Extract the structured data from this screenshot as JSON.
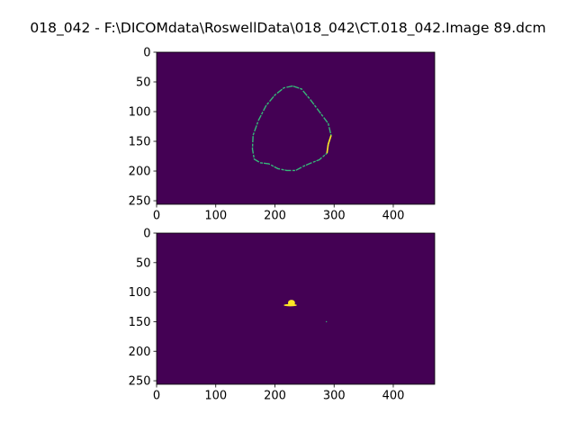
{
  "figure": {
    "title": "018_042 - F:\\DICOMdata\\RoswellData\\018_042\\CT.018_042.Image 89.dcm"
  },
  "colors": {
    "background": "#440154",
    "contour": "#35b779",
    "contour_highlight": "#fde725",
    "blob": "#fde725",
    "axes": "#000000"
  },
  "chart_data": [
    {
      "type": "heatmap",
      "title": "",
      "xlabel": "",
      "ylabel": "",
      "image_size": [
        470,
        256
      ],
      "xlim": [
        0,
        470
      ],
      "ylim": [
        256,
        0
      ],
      "x_ticks": [
        0,
        100,
        200,
        300,
        400
      ],
      "y_ticks": [
        0,
        50,
        100,
        150,
        200,
        250
      ],
      "colormap": "viridis",
      "grid": false,
      "features": [
        {
          "kind": "closed-contour",
          "points": [
            [
              230,
              57
            ],
            [
              215,
              60
            ],
            [
              200,
              72
            ],
            [
              185,
              90
            ],
            [
              172,
              115
            ],
            [
              163,
              140
            ],
            [
              162,
              163
            ],
            [
              165,
              180
            ],
            [
              175,
              186
            ],
            [
              190,
              188
            ],
            [
              205,
              196
            ],
            [
              220,
              199
            ],
            [
              235,
              199
            ],
            [
              248,
              192
            ],
            [
              260,
              187
            ],
            [
              275,
              181
            ],
            [
              288,
              170
            ],
            [
              290,
              155
            ],
            [
              295,
              140
            ],
            [
              290,
              120
            ],
            [
              275,
              100
            ],
            [
              260,
              80
            ],
            [
              245,
              62
            ]
          ]
        }
      ]
    },
    {
      "type": "heatmap",
      "title": "",
      "xlabel": "",
      "ylabel": "",
      "image_size": [
        470,
        256
      ],
      "xlim": [
        0,
        470
      ],
      "ylim": [
        256,
        0
      ],
      "x_ticks": [
        0,
        100,
        200,
        300,
        400
      ],
      "y_ticks": [
        0,
        50,
        100,
        150,
        200,
        250
      ],
      "colormap": "viridis",
      "grid": false,
      "features": [
        {
          "kind": "blob",
          "cx": 228,
          "cy": 118,
          "rx": 6,
          "ry": 5
        },
        {
          "kind": "blob",
          "cx": 226,
          "cy": 122,
          "rx": 11,
          "ry": 2
        },
        {
          "kind": "speck",
          "cx": 287,
          "cy": 150,
          "rx": 1,
          "ry": 1
        }
      ]
    }
  ]
}
